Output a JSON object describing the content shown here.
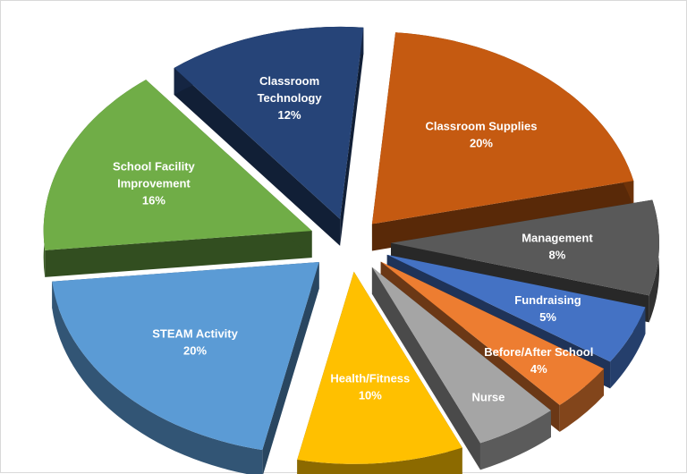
{
  "chart_data": {
    "type": "pie",
    "title": "",
    "style": "3d-exploded",
    "categories": [
      "Classroom Supplies",
      "Management",
      "Fundraising",
      "Before/After School",
      "Nurse",
      "Health/Fitness",
      "STEAM Activity",
      "School Facility Improvement",
      "Classroom Technology"
    ],
    "values": [
      20,
      8,
      5,
      4,
      5,
      10,
      20,
      16,
      12
    ],
    "slices": [
      {
        "name": "Classroom Supplies",
        "label_lines": [
          "Classroom Supplies"
        ],
        "pct_label": "20%",
        "color": "#C55A11"
      },
      {
        "name": "Management",
        "label_lines": [
          "Management"
        ],
        "pct_label": "8%",
        "color": "#595959"
      },
      {
        "name": "Fundraising",
        "label_lines": [
          "Fundraising"
        ],
        "pct_label": "5%",
        "color": "#4472C4"
      },
      {
        "name": "Before/After School",
        "label_lines": [
          "Before/After School"
        ],
        "pct_label": "4%",
        "color": "#ED7D31"
      },
      {
        "name": "Nurse",
        "label_lines": [
          "Nurse"
        ],
        "pct_label": "",
        "color": "#A5A5A5"
      },
      {
        "name": "Health/Fitness",
        "label_lines": [
          "Health/Fitness"
        ],
        "pct_label": "10%",
        "color": "#FFC000"
      },
      {
        "name": "STEAM Activity",
        "label_lines": [
          "STEAM Activity"
        ],
        "pct_label": "20%",
        "color": "#5B9BD5"
      },
      {
        "name": "School Facility Improvement",
        "label_lines": [
          "School  Facility",
          "Improvement"
        ],
        "pct_label": "16%",
        "color": "#70AD47"
      },
      {
        "name": "Classroom Technology",
        "label_lines": [
          "Classroom",
          "Technology"
        ],
        "pct_label": "12%",
        "color": "#264478"
      }
    ]
  }
}
